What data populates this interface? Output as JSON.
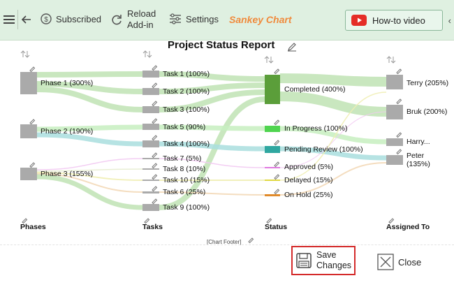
{
  "toolbar": {
    "subscribed_label": "Subscribed",
    "reload_line1": "Reload",
    "reload_line2": "Add-in",
    "settings_label": "Settings",
    "app_title": "Sankey Chart",
    "howto_label": "How-to video",
    "accent_color": "#f08a3c",
    "icons": [
      "menu-icon",
      "back-arrow-icon",
      "dollar-circle-icon",
      "reload-icon",
      "settings-sliders-icon",
      "youtube-icon",
      "chevron-left-icon"
    ]
  },
  "chart": {
    "title": "Project Status Report",
    "footer": "[Chart Footer]",
    "columns": [
      "Phases",
      "Tasks",
      "Status",
      "Assigned To"
    ]
  },
  "chart_data": {
    "type": "sankey",
    "title": "Project Status Report",
    "nodes": {
      "phases": [
        {
          "label": "Phase 1 (300%)",
          "value": 300
        },
        {
          "label": "Phase 2 (190%)",
          "value": 190
        },
        {
          "label": "Phase 3 (155%)",
          "value": 155
        }
      ],
      "tasks": [
        {
          "label": "Task 1 (100%)",
          "value": 100
        },
        {
          "label": "Task 2 (100%)",
          "value": 100
        },
        {
          "label": "Task 3 (100%)",
          "value": 100
        },
        {
          "label": "Task 5 (90%)",
          "value": 90
        },
        {
          "label": "Task 4 (100%)",
          "value": 100
        },
        {
          "label": "Task 7 (5%)",
          "value": 5
        },
        {
          "label": "Task 8 (10%)",
          "value": 10
        },
        {
          "label": "Task 10 (15%)",
          "value": 15
        },
        {
          "label": "Task 6 (25%)",
          "value": 25
        },
        {
          "label": "Task 9 (100%)",
          "value": 100
        }
      ],
      "status": [
        {
          "label": "Completed (400%)",
          "value": 400,
          "color": "#5b9e3a"
        },
        {
          "label": "In Progress (100%)",
          "value": 100,
          "color": "#4fd44f"
        },
        {
          "label": "Pending Review (100%)",
          "value": 100,
          "color": "#2fa7a0"
        },
        {
          "label": "Approved (5%)",
          "value": 5,
          "color": "#e07ae0"
        },
        {
          "label": "Delayed (15%)",
          "value": 15,
          "color": "#e0d840"
        },
        {
          "label": "On Hold (25%)",
          "value": 25,
          "color": "#e08a2a"
        }
      ],
      "assigned": [
        {
          "label": "Terry (205%)",
          "value": 205
        },
        {
          "label": "Bruk (200%)",
          "value": 200
        },
        {
          "label": "Harry...",
          "value": null
        },
        {
          "label": "Peter",
          "label2": "(135%)",
          "value": 135
        }
      ]
    }
  },
  "buttons": {
    "save_line1": "Save",
    "save_line2": "Changes",
    "close_label": "Close"
  }
}
